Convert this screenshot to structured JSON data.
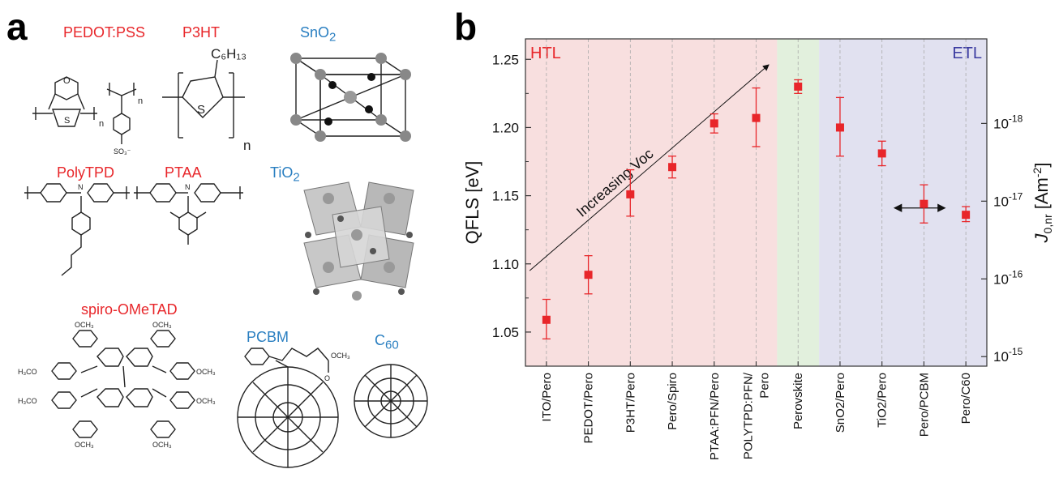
{
  "panel_a": {
    "letter": "a",
    "molecules": [
      {
        "key": "pedot",
        "name": "PEDOT:PSS",
        "color": "#e8262a"
      },
      {
        "key": "p3ht",
        "name": "P3HT",
        "color": "#e8262a"
      },
      {
        "key": "sno2",
        "name": "SnO",
        "sub": "2",
        "color": "#2a7fc1"
      },
      {
        "key": "polytpd",
        "name": "PolyTPD",
        "color": "#e8262a"
      },
      {
        "key": "ptaa",
        "name": "PTAA",
        "color": "#e8262a"
      },
      {
        "key": "tio2",
        "name": "TiO",
        "sub": "2",
        "color": "#2a7fc1"
      },
      {
        "key": "spiro",
        "name": "spiro-OMeTAD",
        "color": "#e8262a"
      },
      {
        "key": "pcbm",
        "name": "PCBM",
        "color": "#2a7fc1"
      },
      {
        "key": "c60",
        "name": "C",
        "sub": "60",
        "color": "#2a7fc1"
      }
    ],
    "structure_text": {
      "c6h13": "C₆H₁₃",
      "n": "n",
      "so3": "SO₃⁻",
      "s": "S",
      "o": "O",
      "n_atom": "N",
      "och3": "OCH₃",
      "h3co": "H₃CO"
    }
  },
  "chart_data": {
    "letter": "b",
    "type": "scatter",
    "xlabel": "",
    "ylabel": "QFLS [eV]",
    "y2label_main": "J",
    "y2label_sub": "0,nr",
    "y2label_unit": " [Am",
    "y2label_unitsup": "-2",
    "y2label_close": "]",
    "ylim": [
      1.025,
      1.265
    ],
    "yticks": [
      1.05,
      1.1,
      1.15,
      1.2,
      1.25
    ],
    "ytick_labels": [
      "1.05",
      "1.10",
      "1.15",
      "1.20",
      "1.25"
    ],
    "y2ticks": [
      {
        "at": 1.203,
        "base": "10",
        "exp": "-18"
      },
      {
        "at": 1.146,
        "base": "10",
        "exp": "-17"
      },
      {
        "at": 1.089,
        "base": "10",
        "exp": "-16"
      },
      {
        "at": 1.032,
        "base": "10",
        "exp": "-15"
      }
    ],
    "categories": [
      "ITO/Pero",
      "PEDOT/Pero",
      "P3HT/Pero",
      "Pero/Spiro",
      "PTAA:PFN/Pero",
      "POLYTPD:PFN/ Pero",
      "Perovskite",
      "SnO2/Pero",
      "TiO2/Pero",
      "Pero/PCBM",
      "Pero/C60"
    ],
    "category_lines": [
      [
        "ITO/Pero"
      ],
      [
        "PEDOT/Pero"
      ],
      [
        "P3HT/Pero"
      ],
      [
        "Pero/Spiro"
      ],
      [
        "PTAA:PFN/Pero"
      ],
      [
        "POLYTPD:PFN/",
        "Pero"
      ],
      [
        "Perovskite"
      ],
      [
        "SnO2/Pero"
      ],
      [
        "TiO2/Pero"
      ],
      [
        "Pero/PCBM"
      ],
      [
        "Pero/C60"
      ]
    ],
    "values": [
      1.059,
      1.092,
      1.151,
      1.171,
      1.203,
      1.207,
      1.23,
      1.2,
      1.181,
      1.144,
      1.136
    ],
    "err_low": [
      1.045,
      1.078,
      1.135,
      1.163,
      1.196,
      1.186,
      1.225,
      1.179,
      1.172,
      1.13,
      1.131
    ],
    "err_high": [
      1.074,
      1.106,
      1.169,
      1.179,
      1.21,
      1.229,
      1.235,
      1.222,
      1.19,
      1.158,
      1.142
    ],
    "marker_color": "#e8262a",
    "regions": [
      {
        "name": "HTL",
        "from": 0,
        "to": 6,
        "color": "#f8dfdf",
        "label_color": "#e8262a"
      },
      {
        "name": "",
        "from": 6,
        "to": 7,
        "color": "#e2f0dd",
        "label_color": ""
      },
      {
        "name": "ETL",
        "from": 7,
        "to": 11,
        "color": "#e1e1f0",
        "label_color": "#3b3ba0"
      }
    ],
    "annotation": {
      "text": "Increasing Voc",
      "from": [
        0.1,
        1.095
      ],
      "to": [
        5.8,
        1.246
      ]
    },
    "double_arrow": {
      "from": [
        8.8,
        1.141
      ],
      "to": [
        10.0,
        1.141
      ]
    },
    "grid": false
  }
}
